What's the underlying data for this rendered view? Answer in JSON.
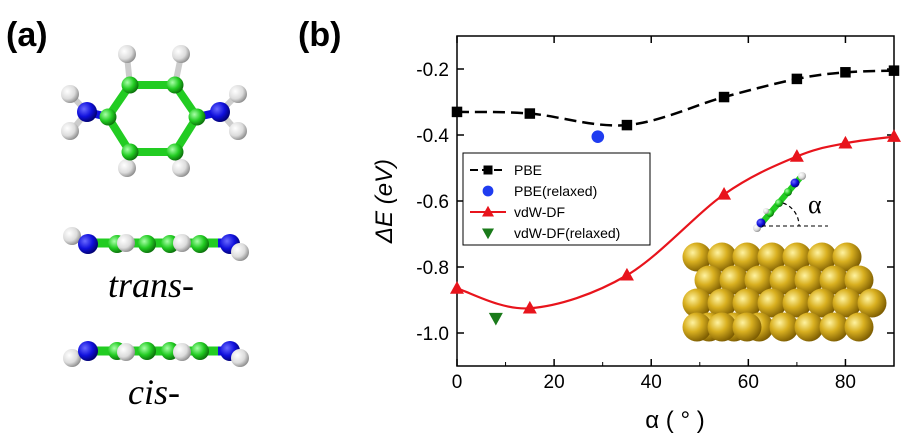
{
  "panels": {
    "a_label": "(a)",
    "b_label": "(b)"
  },
  "molecules": {
    "caption_trans": "trans-",
    "caption_cis": "cis-"
  },
  "colors": {
    "carbon": "#22cc22",
    "nitrogen": "#1010dd",
    "hydrogen": "#e0e0e0",
    "gold": "#d4a81a"
  },
  "chart_data": {
    "type": "line",
    "xlabel": "α ( ° )",
    "ylabel": "ΔE (eV)",
    "xlim": [
      0,
      90
    ],
    "ylim": [
      -1.1,
      -0.1
    ],
    "xticks": [
      0,
      20,
      40,
      60,
      80
    ],
    "yticks": [
      -1.0,
      -0.8,
      -0.6,
      -0.4,
      -0.2
    ],
    "ytick_labels": [
      "-1.0",
      "-0.8",
      "-0.6",
      "-0.4",
      "-0.2"
    ],
    "series": [
      {
        "name": "PBE",
        "marker": "square",
        "line": "dashed",
        "color": "#000000",
        "x": [
          0,
          15,
          35,
          55,
          70,
          80,
          90
        ],
        "y": [
          -0.33,
          -0.335,
          -0.37,
          -0.285,
          -0.23,
          -0.21,
          -0.205
        ]
      },
      {
        "name": "PBE(relaxed)",
        "marker": "circle",
        "line": "none",
        "color": "#1f3cf0",
        "x": [
          29
        ],
        "y": [
          -0.405
        ]
      },
      {
        "name": "vdW-DF",
        "marker": "triangle-up",
        "line": "solid",
        "color": "#e8141c",
        "x": [
          0,
          15,
          35,
          55,
          70,
          80,
          90
        ],
        "y": [
          -0.865,
          -0.925,
          -0.825,
          -0.58,
          -0.465,
          -0.425,
          -0.405
        ]
      },
      {
        "name": "vdW-DF(relaxed)",
        "marker": "triangle-down",
        "line": "none",
        "color": "#1a7a1a",
        "x": [
          8
        ],
        "y": [
          -0.955
        ]
      }
    ],
    "legend_position": "middle-left",
    "inset_angle_label": "α"
  }
}
